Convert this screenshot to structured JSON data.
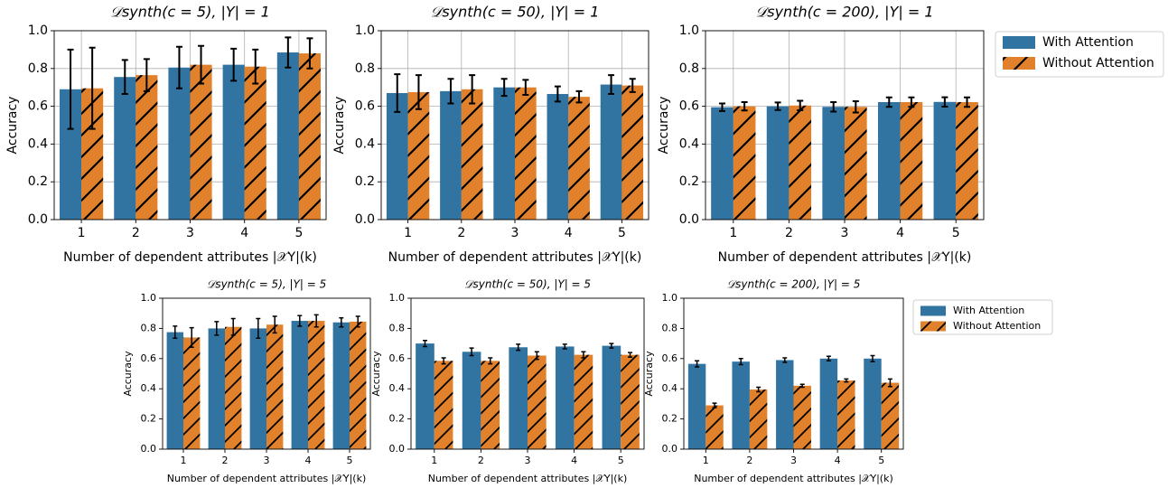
{
  "chart_data": [
    {
      "type": "bar",
      "title": "𝒟synth(c = 5), |Y| = 1",
      "xlabel": "Number of dependent attributes |𝒳Y|(k)",
      "ylabel": "Accuracy",
      "categories": [
        1,
        2,
        3,
        4,
        5
      ],
      "series": [
        {
          "color": "#3274a1",
          "values": [
            0.69,
            0.755,
            0.805,
            0.82,
            0.885
          ],
          "errors": [
            0.21,
            0.09,
            0.11,
            0.085,
            0.08
          ]
        },
        {
          "color": "#e1812c",
          "hatch": "/",
          "values": [
            0.695,
            0.765,
            0.82,
            0.81,
            0.88
          ],
          "errors": [
            0.215,
            0.085,
            0.1,
            0.09,
            0.08
          ]
        }
      ],
      "ylim": [
        0,
        1
      ],
      "yticks": [
        {
          "value": 0,
          "label": "0.0"
        },
        0.2,
        0.4,
        0.6,
        0.8,
        {
          "value": 1,
          "label": "1.0"
        }
      ],
      "grid": true
    },
    {
      "type": "bar",
      "title": "𝒟synth(c = 50), |Y| = 1",
      "xlabel": "Number of dependent attributes |𝒳Y|(k)",
      "ylabel": "Accuracy",
      "categories": [
        1,
        2,
        3,
        4,
        5
      ],
      "series": [
        {
          "color": "#3274a1",
          "values": [
            0.67,
            0.68,
            0.7,
            0.665,
            0.715
          ],
          "errors": [
            0.1,
            0.065,
            0.045,
            0.04,
            0.05
          ]
        },
        {
          "color": "#e1812c",
          "hatch": "/",
          "values": [
            0.675,
            0.69,
            0.7,
            0.65,
            0.71
          ],
          "errors": [
            0.09,
            0.075,
            0.04,
            0.03,
            0.035
          ]
        }
      ],
      "ylim": [
        0,
        1
      ],
      "yticks": [
        {
          "value": 0,
          "label": "0.0"
        },
        0.2,
        0.4,
        0.6,
        0.8,
        {
          "value": 1,
          "label": "1.0"
        }
      ],
      "grid": true
    },
    {
      "type": "bar",
      "title": "𝒟synth(c = 200), |Y| = 1",
      "xlabel": "Number of dependent attributes |𝒳Y|(k)",
      "ylabel": "Accuracy",
      "categories": [
        1,
        2,
        3,
        4,
        5
      ],
      "series": [
        {
          "name": "With Attention",
          "color": "#3274a1",
          "values": [
            0.595,
            0.6,
            0.597,
            0.622,
            0.623
          ],
          "errors": [
            0.02,
            0.02,
            0.025,
            0.025,
            0.025
          ]
        },
        {
          "name": "Without Attention",
          "color": "#e1812c",
          "hatch": "/",
          "values": [
            0.6,
            0.604,
            0.597,
            0.622,
            0.622
          ],
          "errors": [
            0.022,
            0.025,
            0.03,
            0.025,
            0.025
          ]
        }
      ],
      "ylim": [
        0,
        1
      ],
      "yticks": [
        {
          "value": 0,
          "label": "0.0"
        },
        0.2,
        0.4,
        0.6,
        0.8,
        {
          "value": 1,
          "label": "1.0"
        }
      ],
      "grid": true,
      "legend": "outside right"
    },
    {
      "type": "bar",
      "title": "𝒟synth(c = 5), |Y| = 5",
      "xlabel": "Number of dependent attributes |𝒳Y|(k)",
      "ylabel": "Accuracy",
      "categories": [
        1,
        2,
        3,
        4,
        5
      ],
      "series": [
        {
          "color": "#3274a1",
          "values": [
            0.775,
            0.8,
            0.8,
            0.85,
            0.84
          ],
          "errors": [
            0.04,
            0.045,
            0.065,
            0.035,
            0.03
          ]
        },
        {
          "color": "#e1812c",
          "hatch": "/",
          "values": [
            0.74,
            0.81,
            0.825,
            0.85,
            0.845
          ],
          "errors": [
            0.065,
            0.055,
            0.055,
            0.04,
            0.035
          ]
        }
      ],
      "ylim": [
        0,
        1
      ],
      "yticks": [
        {
          "value": 0,
          "label": "0.0"
        },
        0.2,
        0.4,
        0.6,
        0.8,
        {
          "value": 1,
          "label": "1.0"
        }
      ],
      "grid": false
    },
    {
      "type": "bar",
      "title": "𝒟synth(c = 50), |Y| = 5",
      "xlabel": "Number of dependent attributes |𝒳Y|(k)",
      "ylabel": "Accuracy",
      "categories": [
        1,
        2,
        3,
        4,
        5
      ],
      "series": [
        {
          "color": "#3274a1",
          "values": [
            0.7,
            0.645,
            0.675,
            0.68,
            0.685
          ],
          "errors": [
            0.02,
            0.025,
            0.02,
            0.015,
            0.015
          ]
        },
        {
          "color": "#e1812c",
          "hatch": "/",
          "values": [
            0.585,
            0.585,
            0.62,
            0.625,
            0.625
          ],
          "errors": [
            0.02,
            0.02,
            0.025,
            0.02,
            0.015
          ]
        }
      ],
      "ylim": [
        0,
        1
      ],
      "yticks": [
        {
          "value": 0,
          "label": "0.0"
        },
        0.2,
        0.4,
        0.6,
        0.8,
        {
          "value": 1,
          "label": "1.0"
        }
      ],
      "grid": false
    },
    {
      "type": "bar",
      "title": "𝒟synth(c = 200), |Y| = 5",
      "xlabel": "Number of dependent attributes |𝒳Y|(k)",
      "ylabel": "Accuracy",
      "categories": [
        1,
        2,
        3,
        4,
        5
      ],
      "series": [
        {
          "name": "With Attention",
          "color": "#3274a1",
          "values": [
            0.565,
            0.58,
            0.59,
            0.6,
            0.6
          ],
          "errors": [
            0.02,
            0.02,
            0.015,
            0.015,
            0.02
          ]
        },
        {
          "name": "Without Attention",
          "color": "#e1812c",
          "hatch": "/",
          "values": [
            0.29,
            0.395,
            0.42,
            0.455,
            0.44
          ],
          "errors": [
            0.015,
            0.015,
            0.01,
            0.01,
            0.025
          ]
        }
      ],
      "ylim": [
        0,
        1
      ],
      "yticks": [
        {
          "value": 0,
          "label": "0.0"
        },
        0.2,
        0.4,
        0.6,
        0.8,
        {
          "value": 1,
          "label": "1.0"
        }
      ],
      "grid": false,
      "legend": "outside right"
    }
  ]
}
